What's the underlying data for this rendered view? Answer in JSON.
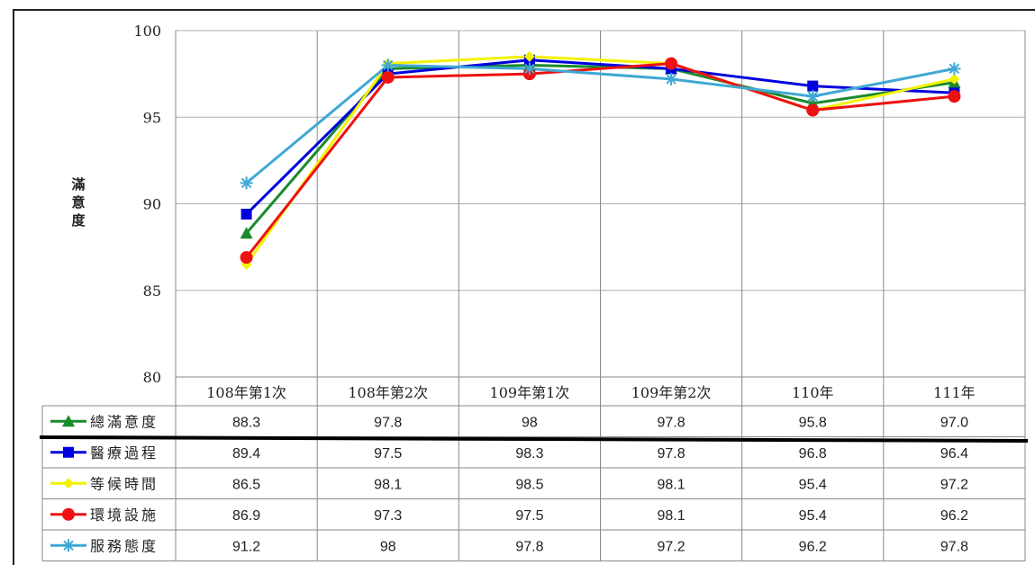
{
  "chart_data": {
    "type": "line",
    "ylabel": "滿意度",
    "ylim": [
      80,
      100
    ],
    "yticks": [
      80,
      85,
      90,
      95,
      100
    ],
    "grid": true,
    "legend": "data-table-left",
    "categories": [
      "108年第1次",
      "108年第2次",
      "109年第1次",
      "109年第2次",
      "110年",
      "111年"
    ],
    "series": [
      {
        "name": "總滿意度",
        "color": "#1a8a2e",
        "marker": "triangle",
        "values": [
          88.3,
          97.8,
          98,
          97.8,
          95.8,
          97.0
        ],
        "labels": [
          "88.3",
          "97.8",
          "98",
          "97.8",
          "95.8",
          "97.0"
        ]
      },
      {
        "name": "醫療過程",
        "color": "#0000dd",
        "marker": "square",
        "values": [
          89.4,
          97.5,
          98.3,
          97.8,
          96.8,
          96.4
        ],
        "labels": [
          "89.4",
          "97.5",
          "98.3",
          "97.8",
          "96.8",
          "96.4"
        ]
      },
      {
        "name": "等候時間",
        "color": "#f2f200",
        "marker": "diamond",
        "values": [
          86.5,
          98.1,
          98.5,
          98.1,
          95.4,
          97.2
        ],
        "labels": [
          "86.5",
          "98.1",
          "98.5",
          "98.1",
          "95.4",
          "97.2"
        ]
      },
      {
        "name": "環境設施",
        "color": "#ee1111",
        "marker": "circle",
        "values": [
          86.9,
          97.3,
          97.5,
          98.1,
          95.4,
          96.2
        ],
        "labels": [
          "86.9",
          "97.3",
          "97.5",
          "98.1",
          "95.4",
          "96.2"
        ]
      },
      {
        "name": "服務態度",
        "color": "#3fa8d4",
        "marker": "star",
        "values": [
          91.2,
          98,
          97.8,
          97.2,
          96.2,
          97.8
        ],
        "labels": [
          "91.2",
          "98",
          "97.8",
          "97.2",
          "96.2",
          "97.8"
        ]
      }
    ]
  }
}
